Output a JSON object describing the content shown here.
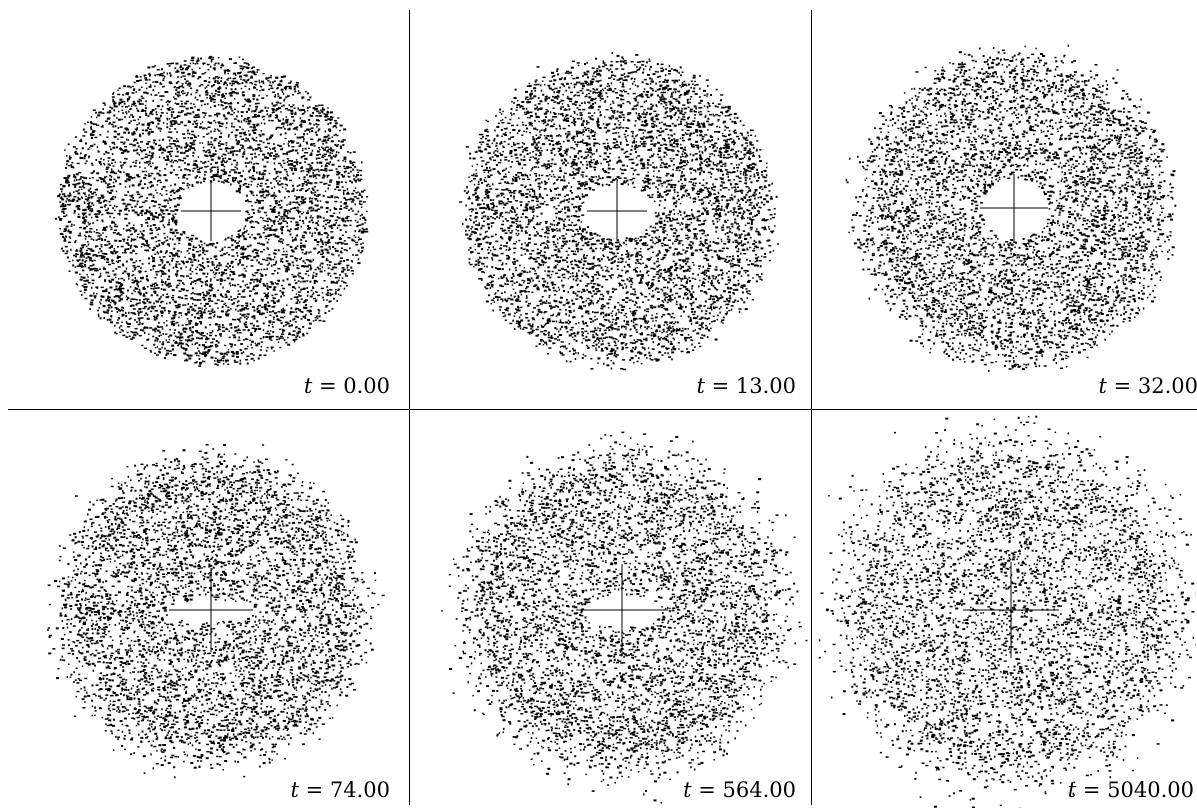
{
  "figure": {
    "colors": {
      "background": "#ffffff",
      "particles": "#000000",
      "axes": "#000000"
    },
    "panels": [
      {
        "time_var": "t",
        "time_value": "0.00",
        "stage": 0
      },
      {
        "time_var": "t",
        "time_value": "13.00",
        "stage": 1
      },
      {
        "time_var": "t",
        "time_value": "32.00",
        "stage": 2
      },
      {
        "time_var": "t",
        "time_value": "74.00",
        "stage": 3
      },
      {
        "time_var": "t",
        "time_value": "564.00",
        "stage": 4
      },
      {
        "time_var": "t",
        "time_value": "5040.00",
        "stage": 5
      }
    ]
  }
}
